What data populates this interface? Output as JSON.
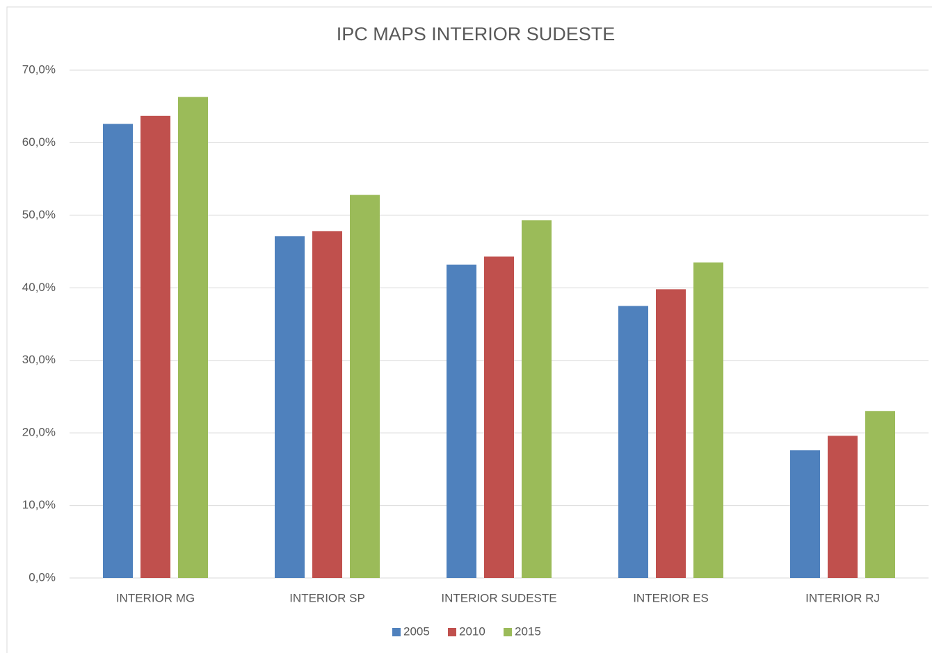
{
  "chart_data": {
    "type": "bar",
    "title": "IPC MAPS INTERIOR SUDESTE",
    "categories": [
      "INTERIOR MG",
      "INTERIOR SP",
      "INTERIOR SUDESTE",
      "INTERIOR ES",
      "INTERIOR RJ"
    ],
    "series": [
      {
        "name": "2005",
        "color": "#4f81bd",
        "values": [
          62.6,
          47.1,
          43.2,
          37.5,
          17.6
        ]
      },
      {
        "name": "2010",
        "color": "#c0504d",
        "values": [
          63.7,
          47.8,
          44.3,
          39.8,
          19.6
        ]
      },
      {
        "name": "2015",
        "color": "#9bbb59",
        "values": [
          66.3,
          52.8,
          49.3,
          43.5,
          23.0
        ]
      }
    ],
    "ylim": [
      0,
      70
    ],
    "yticks": [
      {
        "value": 0,
        "label": "0,0%"
      },
      {
        "value": 10,
        "label": "10,0%"
      },
      {
        "value": 20,
        "label": "20,0%"
      },
      {
        "value": 30,
        "label": "30,0%"
      },
      {
        "value": 40,
        "label": "40,0%"
      },
      {
        "value": 50,
        "label": "50,0%"
      },
      {
        "value": 60,
        "label": "60,0%"
      },
      {
        "value": 70,
        "label": "70,0%"
      }
    ],
    "grid": true,
    "legend": "bottom"
  }
}
